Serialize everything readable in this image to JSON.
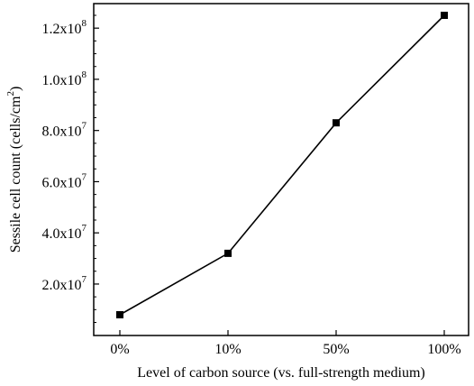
{
  "chart_data": {
    "type": "line",
    "categories": [
      "0%",
      "10%",
      "50%",
      "100%"
    ],
    "values": [
      8000000,
      32000000,
      83000000,
      125000000
    ],
    "xlabel": "Level of carbon source (vs. full-strength medium)",
    "ylabel": {
      "prefix": "Sessile cell count (cells/cm",
      "superscript": "2",
      "suffix": ")"
    },
    "ylim": [
      0,
      130000000
    ],
    "y_ticks": [
      {
        "value": 20000000,
        "mantissa": "2.0x10",
        "exponent": "7"
      },
      {
        "value": 40000000,
        "mantissa": "4.0x10",
        "exponent": "7"
      },
      {
        "value": 60000000,
        "mantissa": "6.0x10",
        "exponent": "7"
      },
      {
        "value": 80000000,
        "mantissa": "8.0x10",
        "exponent": "7"
      },
      {
        "value": 100000000,
        "mantissa": "1.0x10",
        "exponent": "8"
      },
      {
        "value": 120000000,
        "mantissa": "1.2x10",
        "exponent": "8"
      }
    ],
    "y_minor_step": 5000000,
    "grid": false,
    "line_color": "#000000",
    "marker_color": "#000000"
  }
}
